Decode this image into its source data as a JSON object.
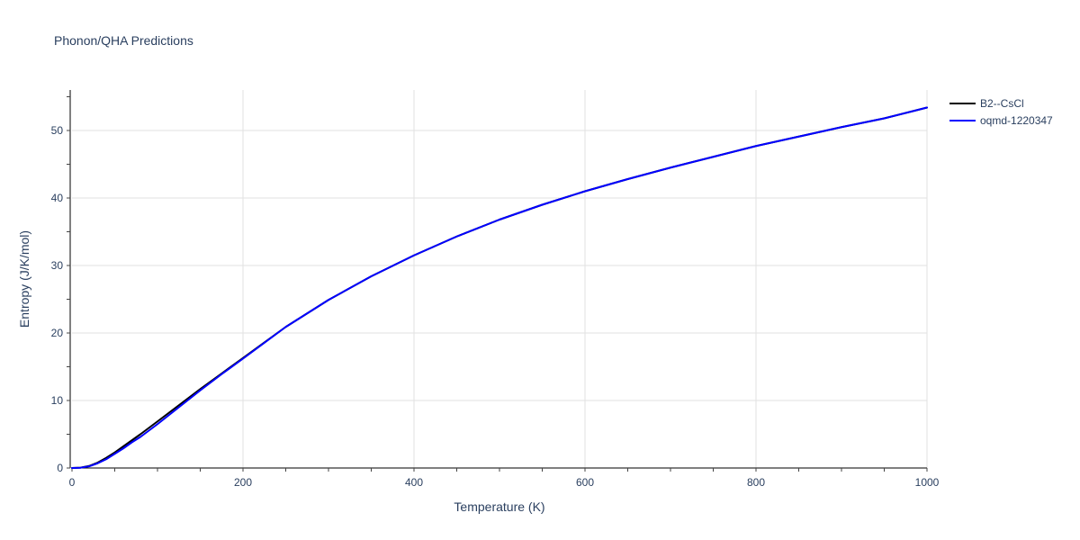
{
  "chart_data": {
    "type": "line",
    "title": "Phonon/QHA Predictions",
    "xlabel": "Temperature (K)",
    "ylabel": "Entropy (J/K/mol)",
    "xlim": [
      0,
      1000
    ],
    "ylim": [
      0,
      56
    ],
    "x_ticks": [
      0,
      200,
      400,
      600,
      800,
      1000
    ],
    "y_ticks": [
      0,
      10,
      20,
      30,
      40,
      50
    ],
    "x_tick_labels": [
      "0",
      "200",
      "400",
      "600",
      "800",
      "1000"
    ],
    "y_tick_labels": [
      "0",
      "10",
      "20",
      "30",
      "40",
      "50"
    ],
    "grid": true,
    "legend_position": "top-right",
    "series": [
      {
        "name": "B2--CsCl",
        "color": "#000000",
        "x": [
          0,
          10,
          20,
          30,
          40,
          50,
          60,
          70,
          80,
          100,
          125,
          150,
          175,
          200,
          250,
          300,
          350,
          400,
          450,
          500,
          550,
          600,
          650,
          700,
          750,
          800,
          850,
          900,
          950,
          1000
        ],
        "y": [
          0,
          0.05,
          0.3,
          0.8,
          1.5,
          2.3,
          3.2,
          4.1,
          5.0,
          6.9,
          9.3,
          11.7,
          14.0,
          16.3,
          20.9,
          24.9,
          28.4,
          31.5,
          34.3,
          36.8,
          39.0,
          41.0,
          42.8,
          44.5,
          46.1,
          47.7,
          49.1,
          50.5,
          51.8,
          53.4
        ]
      },
      {
        "name": "oqmd-1220347",
        "color": "#0000ff",
        "x": [
          0,
          10,
          20,
          30,
          40,
          50,
          60,
          70,
          80,
          100,
          125,
          150,
          175,
          200,
          250,
          300,
          350,
          400,
          450,
          500,
          550,
          600,
          650,
          700,
          750,
          800,
          850,
          900,
          950,
          1000
        ],
        "y": [
          0,
          0.04,
          0.25,
          0.7,
          1.3,
          2.1,
          2.9,
          3.8,
          4.6,
          6.5,
          9.0,
          11.5,
          13.9,
          16.2,
          20.9,
          24.9,
          28.4,
          31.5,
          34.3,
          36.8,
          39.0,
          41.0,
          42.8,
          44.5,
          46.1,
          47.7,
          49.1,
          50.5,
          51.8,
          53.4
        ]
      }
    ]
  }
}
